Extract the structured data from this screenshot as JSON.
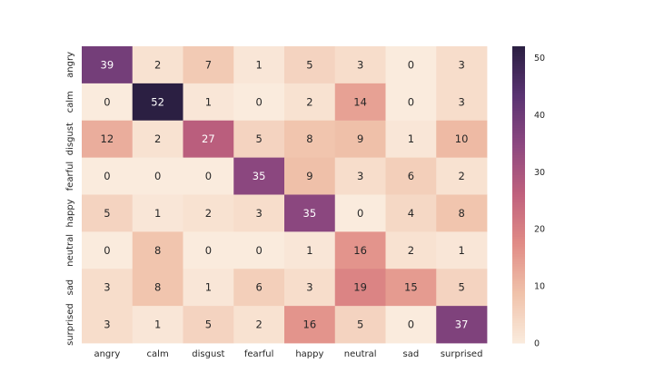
{
  "chart_data": {
    "type": "heatmap",
    "title": "",
    "xlabel": "",
    "ylabel": "",
    "x_categories": [
      "angry",
      "calm",
      "disgust",
      "fearful",
      "happy",
      "neutral",
      "sad",
      "surprised"
    ],
    "y_categories": [
      "angry",
      "calm",
      "disgust",
      "fearful",
      "happy",
      "neutral",
      "sad",
      "surprised"
    ],
    "values": [
      [
        39,
        2,
        7,
        1,
        5,
        3,
        0,
        3
      ],
      [
        0,
        52,
        1,
        0,
        2,
        14,
        0,
        3
      ],
      [
        12,
        2,
        27,
        5,
        8,
        9,
        1,
        10
      ],
      [
        0,
        0,
        0,
        35,
        9,
        3,
        6,
        2
      ],
      [
        5,
        1,
        2,
        3,
        35,
        0,
        4,
        8
      ],
      [
        0,
        8,
        0,
        0,
        1,
        16,
        2,
        1
      ],
      [
        3,
        8,
        1,
        6,
        3,
        19,
        15,
        5
      ],
      [
        3,
        1,
        5,
        2,
        16,
        5,
        0,
        37
      ]
    ],
    "annotations": true,
    "grid": false,
    "colorbar": {
      "range": [
        0,
        52
      ],
      "ticks": [
        "0",
        "10",
        "20",
        "30",
        "40",
        "50"
      ],
      "placement": "right"
    },
    "colormap": [
      "#faebdd",
      "#f0c2aa",
      "#e18c86",
      "#c0617d",
      "#8d4880",
      "#5a3372",
      "#2b1f42"
    ]
  }
}
